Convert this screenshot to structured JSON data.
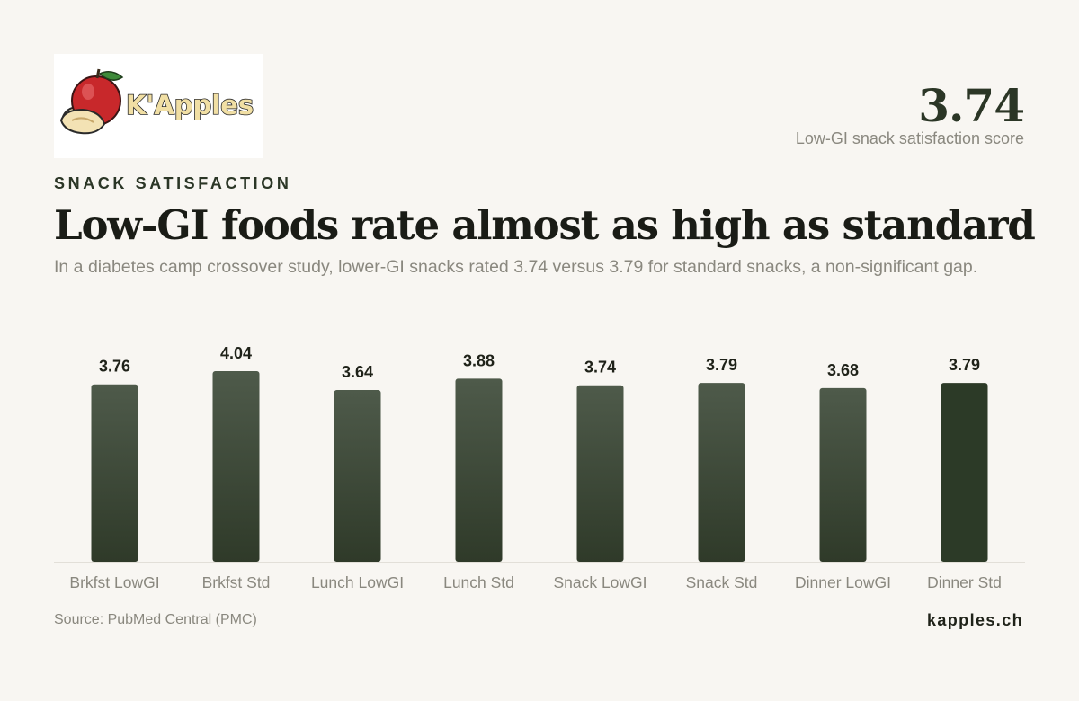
{
  "brand": {
    "logo_text": "K'Apples",
    "colors": {
      "apple": "#c8282b",
      "leaf": "#3e8a3a",
      "text_fill": "#f1dfa4"
    }
  },
  "kpi": {
    "value": "3.74",
    "label": "Low-GI snack satisfaction score"
  },
  "header": {
    "eyebrow": "SNACK SATISFACTION",
    "title": "Low-GI foods rate almost as high as standard",
    "subtitle": "In a diabetes camp crossover study, lower-GI snacks rated 3.74 versus 3.79 for standard snacks, a non-significant gap."
  },
  "chart_data": {
    "type": "bar",
    "categories": [
      "Brkfst LowGI",
      "Brkfst Std",
      "Lunch LowGI",
      "Lunch Std",
      "Snack LowGI",
      "Snack Std",
      "Dinner LowGI",
      "Dinner Std"
    ],
    "values": [
      3.76,
      4.04,
      3.64,
      3.88,
      3.74,
      3.79,
      3.68,
      3.79
    ],
    "data_labels": [
      "3.76",
      "4.04",
      "3.64",
      "3.88",
      "3.74",
      "3.79",
      "3.68",
      "3.79"
    ],
    "ylim": [
      0,
      4.04
    ],
    "grid": false,
    "colors": {
      "bar_top": "#4e5a4a",
      "bar_bottom": "#2f3a29",
      "highlight": "#2c3a27",
      "baseline": "#e2dfd8",
      "label": "#1f2219",
      "tick": "#8a887f"
    },
    "highlight_index": 7
  },
  "footer": {
    "source": "Source: PubMed Central (PMC)",
    "site": "kapples.ch"
  }
}
